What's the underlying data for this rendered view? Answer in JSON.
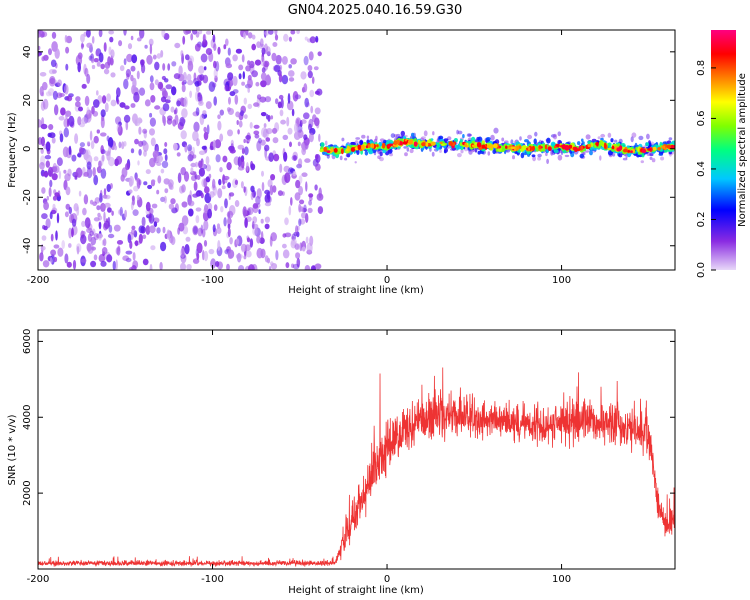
{
  "title": "GN04.2025.040.16.59.G30",
  "chart_data": [
    {
      "type": "heatmap",
      "xlabel": "Height of straight line (km)",
      "ylabel": "Frequency (Hz)",
      "xlim": [
        -200,
        165
      ],
      "ylim": [
        -50,
        49
      ],
      "xticks": [
        -200,
        -100,
        0,
        100
      ],
      "yticks": [
        -40,
        -20,
        0,
        20,
        40
      ],
      "colorbar": {
        "label": "Normalized spectral amplitude",
        "range": [
          0.0,
          0.95
        ],
        "ticks": [
          0.0,
          0.2,
          0.4,
          0.6,
          0.8
        ],
        "tick_labels": [
          "0.0",
          "0.2",
          "0.4",
          "0.6",
          "0.8"
        ],
        "colormap": [
          "#e8d8f8",
          "#8a2be2",
          "#0000ff",
          "#00c8ff",
          "#00ff80",
          "#80ff00",
          "#ffff00",
          "#ff8000",
          "#ff0000",
          "#ff0080"
        ]
      },
      "noise_region": {
        "x_range": [
          -200,
          -38
        ],
        "amplitude_range": [
          0.02,
          0.15
        ]
      },
      "signal_track": {
        "x_range": [
          -38,
          165
        ],
        "centerline": [
          {
            "x": -38,
            "y": 0
          },
          {
            "x": -30,
            "y": -1
          },
          {
            "x": -20,
            "y": 0
          },
          {
            "x": -10,
            "y": 1
          },
          {
            "x": 0,
            "y": 1
          },
          {
            "x": 10,
            "y": 3
          },
          {
            "x": 20,
            "y": 2
          },
          {
            "x": 40,
            "y": 2
          },
          {
            "x": 60,
            "y": 1
          },
          {
            "x": 80,
            "y": 0
          },
          {
            "x": 100,
            "y": 1
          },
          {
            "x": 110,
            "y": 0
          },
          {
            "x": 120,
            "y": 2
          },
          {
            "x": 140,
            "y": -1
          },
          {
            "x": 165,
            "y": 1
          }
        ],
        "peak_amplitude": 0.92
      }
    },
    {
      "type": "line",
      "xlabel": "Height of straight line (km)",
      "ylabel": "SNR (10 * v/v)",
      "xlim": [
        -200,
        165
      ],
      "ylim": [
        0,
        6300
      ],
      "xticks": [
        -200,
        -100,
        0,
        100
      ],
      "yticks": [
        2000,
        4000,
        6000
      ],
      "color": "#ee3333",
      "envelope": [
        {
          "x": -200,
          "mean": 150,
          "spread": 100
        },
        {
          "x": -30,
          "mean": 150,
          "spread": 100
        },
        {
          "x": -25,
          "mean": 700,
          "spread": 500
        },
        {
          "x": -15,
          "mean": 1800,
          "spread": 900
        },
        {
          "x": -5,
          "mean": 2900,
          "spread": 1000
        },
        {
          "x": 10,
          "mean": 3700,
          "spread": 900
        },
        {
          "x": 30,
          "mean": 4100,
          "spread": 900
        },
        {
          "x": 60,
          "mean": 3900,
          "spread": 700
        },
        {
          "x": 90,
          "mean": 3800,
          "spread": 700
        },
        {
          "x": 120,
          "mean": 3900,
          "spread": 900
        },
        {
          "x": 150,
          "mean": 3600,
          "spread": 800
        },
        {
          "x": 155,
          "mean": 1800,
          "spread": 700
        },
        {
          "x": 160,
          "mean": 1100,
          "spread": 500
        },
        {
          "x": 165,
          "mean": 1400,
          "spread": 500
        }
      ]
    }
  ]
}
